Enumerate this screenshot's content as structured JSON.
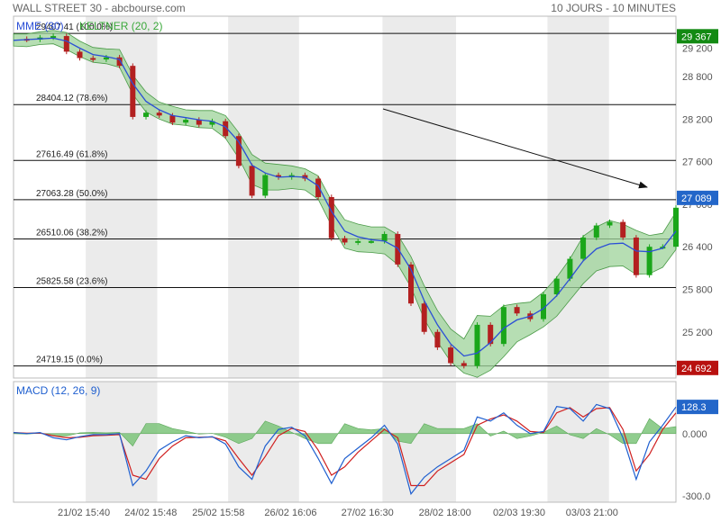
{
  "header": {
    "title": "WALL STREET 30 - abcbourse.com",
    "period": "10 JOURS - 10 MINUTES"
  },
  "colors": {
    "up": "#1aa61a",
    "down": "#b32020",
    "mme": "#2b4fd6",
    "keltner_fill": "#9dd39a",
    "keltner_line": "#4a9a47",
    "macd": "#2060d0",
    "signal": "#d02020",
    "hist": "#7cc47a",
    "shade": "#ebebeb",
    "badge_green": "#138a13",
    "badge_blue": "#2366c9",
    "badge_red": "#b8110f"
  },
  "chart_data": [
    {
      "type": "candlestick",
      "legend": [
        {
          "label": "MME (30)",
          "color": "#2b4fd6"
        },
        {
          "label": "KELTNER (20, 2)",
          "color": "#3aa83a"
        }
      ],
      "y_ticks": [
        "29 200",
        "28 800",
        "28 200",
        "27 600",
        "27 000",
        "26 400",
        "25 800",
        "25 200"
      ],
      "y_tick_values": [
        29200,
        28800,
        28200,
        27600,
        27000,
        26400,
        25800,
        25200
      ],
      "ylim": [
        24550,
        29650
      ],
      "fib_levels": [
        {
          "label": "29407.41  (100.0%)",
          "value": 29407.41
        },
        {
          "label": "28404.12  (78.6%)",
          "value": 28404.12
        },
        {
          "label": "27616.49  (61.8%)",
          "value": 27616.49
        },
        {
          "label": "27063.28  (50.0%)",
          "value": 27063.28
        },
        {
          "label": "26510.06  (38.2%)",
          "value": 26510.06
        },
        {
          "label": "25825.58  (23.6%)",
          "value": 25825.58
        },
        {
          "label": "24719.15  (0.0%)",
          "value": 24719.15
        }
      ],
      "price_badges": [
        {
          "text": "29 367",
          "value": 29367,
          "color": "#138a13"
        },
        {
          "text": "27 089",
          "value": 27089,
          "color": "#2366c9"
        },
        {
          "text": "24 692",
          "value": 24692,
          "color": "#b8110f"
        }
      ],
      "x_labels": [
        "21/02 15:40",
        "24/02 15:48",
        "25/02 15:58",
        "26/02 16:06",
        "27/02 16:30",
        "28/02 18:00",
        "02/03 19:30",
        "03/03 21:00"
      ],
      "x": [
        0,
        2,
        4,
        6,
        8,
        10,
        12,
        14,
        16,
        18,
        20,
        22,
        24,
        26,
        28,
        30,
        32,
        34,
        36,
        38,
        40,
        42,
        44,
        46,
        48,
        50,
        52,
        54,
        56,
        58,
        60,
        62,
        64,
        66,
        68,
        70,
        72,
        74,
        76,
        78,
        80,
        82,
        84,
        86,
        88,
        90,
        92,
        94,
        96,
        98,
        100
      ],
      "close": [
        29330,
        29320,
        29350,
        29370,
        29150,
        29060,
        29040,
        29070,
        28950,
        28230,
        28290,
        28250,
        28150,
        28190,
        28120,
        28170,
        27960,
        27540,
        27120,
        27410,
        27380,
        27410,
        27360,
        27100,
        26520,
        26460,
        26480,
        26480,
        26580,
        26150,
        25600,
        25200,
        24980,
        24760,
        24720,
        25300,
        25030,
        25550,
        25460,
        25380,
        25730,
        25950,
        26230,
        26530,
        26700,
        26750,
        26530,
        26000,
        26400,
        26400,
        26950
      ],
      "mme": [
        29310,
        29320,
        29330,
        29340,
        29300,
        29200,
        29110,
        29080,
        29040,
        28700,
        28450,
        28330,
        28250,
        28220,
        28190,
        28170,
        28090,
        27880,
        27550,
        27440,
        27380,
        27390,
        27380,
        27260,
        26900,
        26620,
        26540,
        26500,
        26480,
        26380,
        26080,
        25640,
        25300,
        25030,
        24860,
        24900,
        25050,
        25250,
        25370,
        25420,
        25530,
        25710,
        25950,
        26200,
        26370,
        26440,
        26450,
        26340,
        26330,
        26380,
        26620
      ],
      "keltner_upper": [
        29400,
        29400,
        29430,
        29450,
        29420,
        29300,
        29210,
        29190,
        29180,
        28820,
        28580,
        28440,
        28380,
        28330,
        28320,
        28320,
        28250,
        28010,
        27700,
        27580,
        27560,
        27540,
        27500,
        27400,
        27050,
        26780,
        26720,
        26680,
        26680,
        26570,
        26260,
        25850,
        25500,
        25240,
        25100,
        25430,
        25420,
        25570,
        25600,
        25620,
        25760,
        25970,
        26230,
        26550,
        26680,
        26770,
        26720,
        26630,
        26560,
        26590,
        26890
      ],
      "keltner_lower": [
        29230,
        29220,
        29250,
        29260,
        29180,
        29080,
        29000,
        28980,
        28930,
        28550,
        28300,
        28200,
        28130,
        28110,
        28080,
        28070,
        27930,
        27650,
        27280,
        27200,
        27200,
        27220,
        27200,
        27070,
        26700,
        26380,
        26330,
        26320,
        26300,
        26150,
        25830,
        25380,
        25060,
        24780,
        24620,
        24560,
        24660,
        24850,
        25060,
        25160,
        25270,
        25420,
        25650,
        25880,
        26060,
        26120,
        26130,
        26010,
        26020,
        26110,
        26360
      ]
    },
    {
      "type": "line",
      "legend": [
        {
          "label": "MACD (12, 26, 9)",
          "color": "#2060d0"
        }
      ],
      "y_ticks": [
        "0.000",
        "-300.0"
      ],
      "y_tick_values": [
        0,
        -300
      ],
      "ylim": [
        -330,
        250
      ],
      "badges": [
        {
          "text": "128.3",
          "value": 128.3,
          "color": "#2366c9"
        }
      ],
      "x": [
        0,
        2,
        4,
        6,
        8,
        10,
        12,
        14,
        16,
        18,
        20,
        22,
        24,
        26,
        28,
        30,
        32,
        34,
        36,
        38,
        40,
        42,
        44,
        46,
        48,
        50,
        52,
        54,
        56,
        58,
        60,
        62,
        64,
        66,
        68,
        70,
        72,
        74,
        76,
        78,
        80,
        82,
        84,
        86,
        88,
        90,
        92,
        94,
        96,
        98,
        100
      ],
      "macd": [
        5,
        0,
        5,
        -20,
        -30,
        -15,
        -5,
        -5,
        0,
        -250,
        -180,
        -80,
        -40,
        -10,
        -20,
        -15,
        -50,
        -160,
        -220,
        -60,
        20,
        30,
        -10,
        -120,
        -240,
        -120,
        -70,
        -20,
        40,
        -50,
        -290,
        -210,
        -160,
        -120,
        -80,
        80,
        60,
        100,
        40,
        0,
        10,
        130,
        120,
        60,
        140,
        120,
        -20,
        -220,
        -40,
        40,
        128
      ],
      "signal": [
        5,
        2,
        3,
        -10,
        -20,
        -18,
        -10,
        -8,
        -5,
        -200,
        -220,
        -120,
        -60,
        -20,
        -18,
        -16,
        -35,
        -120,
        -200,
        -110,
        -10,
        25,
        10,
        -80,
        -200,
        -160,
        -90,
        -35,
        20,
        -20,
        -250,
        -250,
        -180,
        -140,
        -100,
        40,
        70,
        90,
        60,
        10,
        5,
        100,
        125,
        80,
        120,
        125,
        20,
        -180,
        -100,
        20,
        100
      ]
    }
  ]
}
